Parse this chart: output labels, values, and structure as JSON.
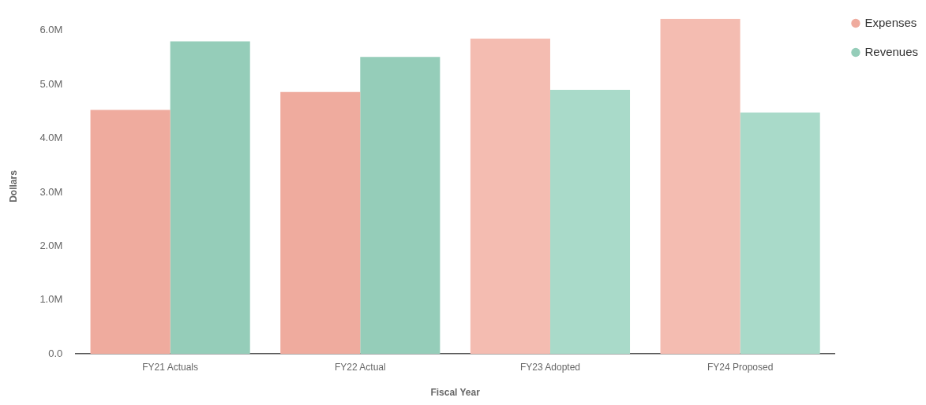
{
  "chart_data": {
    "type": "bar",
    "xlabel": "Fiscal Year",
    "ylabel": "Dollars",
    "categories": [
      "FY21 Actuals",
      "FY22 Actual",
      "FY23 Adopted",
      "FY24 Proposed"
    ],
    "series": [
      {
        "name": "Expenses",
        "color": "#efab9e",
        "colors": [
          "#efab9e",
          "#efab9e",
          "#f4bcb1",
          "#f4bcb1"
        ],
        "values": [
          4.53,
          4.86,
          5.85,
          6.22
        ]
      },
      {
        "name": "Revenues",
        "color": "#95cdb9",
        "colors": [
          "#95cdb9",
          "#95cdb9",
          "#a9dac9",
          "#a9dac9"
        ],
        "values": [
          5.8,
          5.51,
          4.9,
          4.48
        ]
      }
    ],
    "ylim": [
      0,
      6.22
    ],
    "yticks": [
      {
        "value": 0,
        "label": "0.0"
      },
      {
        "value": 1,
        "label": "1.0M"
      },
      {
        "value": 2,
        "label": "2.0M"
      },
      {
        "value": 3,
        "label": "3.0M"
      },
      {
        "value": 4,
        "label": "4.0M"
      },
      {
        "value": 5,
        "label": "5.0M"
      },
      {
        "value": 6,
        "label": "6.0M"
      }
    ],
    "grid": false,
    "legend": "top right"
  }
}
